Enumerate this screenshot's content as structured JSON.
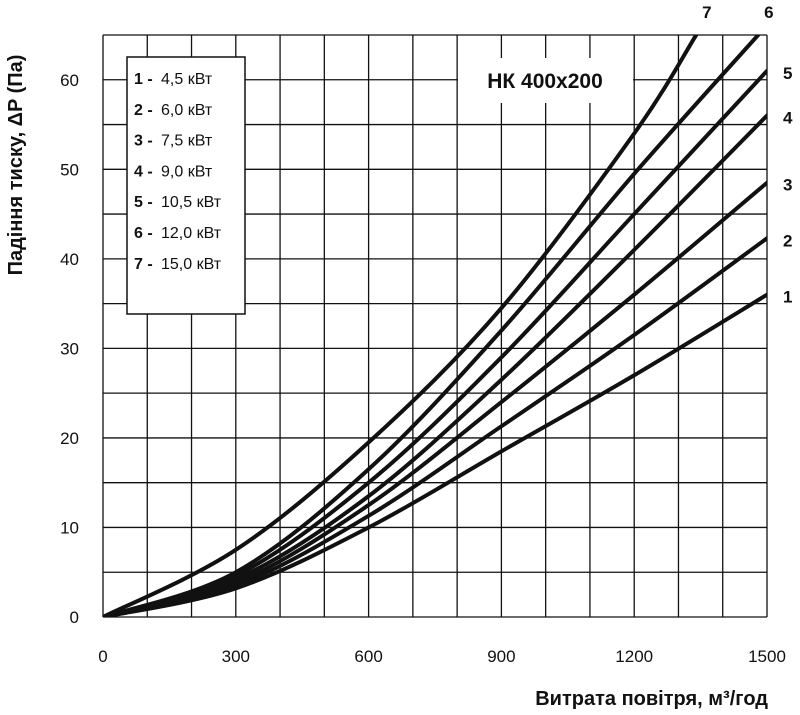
{
  "chart_data": {
    "type": "line",
    "title": "НК 400х200",
    "xlabel": "Витрата повітря, м³/год",
    "ylabel": "Падіння тиску, ΔP (Па)",
    "xlim": [
      0,
      1500
    ],
    "ylim": [
      0,
      65
    ],
    "x_ticks": [
      "0",
      "300",
      "600",
      "900",
      "1200",
      "1500"
    ],
    "y_ticks": [
      "0",
      "10",
      "20",
      "30",
      "40",
      "50",
      "60"
    ],
    "grid": true,
    "legend_position": "top-left",
    "legend": [
      {
        "num": "1 -",
        "label": "4,5  кВт"
      },
      {
        "num": "2 -",
        "label": "6,0  кВт"
      },
      {
        "num": "3 -",
        "label": "7,5  кВт"
      },
      {
        "num": "4 -",
        "label": "9,0  кВт"
      },
      {
        "num": "5 -",
        "label": "10,5  кВт"
      },
      {
        "num": "6 -",
        "label": "12,0  кВт"
      },
      {
        "num": "7 -",
        "label": "15,0  кВт"
      }
    ],
    "series": [
      {
        "name": "1",
        "x": [
          0,
          300,
          600,
          900,
          1200,
          1500
        ],
        "y": [
          0,
          3.2,
          10,
          18.5,
          27,
          36
        ]
      },
      {
        "name": "2",
        "x": [
          0,
          300,
          600,
          900,
          1200,
          1500
        ],
        "y": [
          0,
          3.5,
          11.3,
          21.3,
          31.5,
          42.3
        ]
      },
      {
        "name": "3",
        "x": [
          0,
          300,
          600,
          900,
          1200,
          1500
        ],
        "y": [
          0,
          3.8,
          12.5,
          24,
          36,
          48.5
        ]
      },
      {
        "name": "4",
        "x": [
          0,
          300,
          600,
          900,
          1200,
          1500
        ],
        "y": [
          0,
          4.2,
          13.5,
          26.5,
          41,
          56
        ]
      },
      {
        "name": "5",
        "x": [
          0,
          300,
          600,
          900,
          1200,
          1500
        ],
        "y": [
          0,
          4.6,
          15,
          29,
          45,
          61
        ]
      },
      {
        "name": "6",
        "x": [
          0,
          300,
          600,
          900,
          1200,
          1480
        ],
        "y": [
          0,
          5,
          16.5,
          32,
          49.5,
          65
        ]
      },
      {
        "name": "7",
        "x": [
          0,
          300,
          600,
          900,
          1200,
          1340
        ],
        "y": [
          0,
          7.5,
          19.5,
          34.5,
          54,
          65
        ]
      }
    ]
  }
}
